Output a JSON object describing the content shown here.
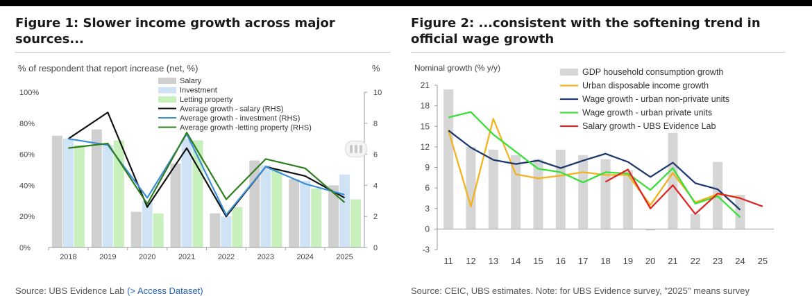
{
  "figure1": {
    "title": "Figure 1: Slower income growth across major sources...",
    "source": "Source: UBS Evidence Lab",
    "source_link": "(> Access Dataset)",
    "chart_data": {
      "type": "bar",
      "subtitle": "% of respondent that report increase (net, %)",
      "right_axis_label": "%",
      "categories": [
        "2018",
        "2019",
        "2020",
        "2021",
        "2022",
        "2023",
        "2024",
        "2025"
      ],
      "y_left": {
        "ylim": [
          0,
          100
        ],
        "ticks": [
          "0%",
          "20%",
          "40%",
          "60%",
          "80%",
          "100%"
        ],
        "tick_values": [
          0,
          20,
          40,
          60,
          80,
          100
        ]
      },
      "y_right": {
        "ylim": [
          0,
          10
        ],
        "ticks": [
          "0",
          "2",
          "4",
          "6",
          "8",
          "10"
        ],
        "tick_values": [
          0,
          2,
          4,
          6,
          8,
          10
        ]
      },
      "bar_series": [
        {
          "name": "Salary",
          "color": "#cfcfcf",
          "values": [
            72,
            76,
            23,
            54,
            22,
            56,
            44,
            40
          ]
        },
        {
          "name": "Investment",
          "color": "#cfe3f5",
          "values": [
            70,
            66,
            30,
            70,
            20,
            53,
            43,
            47
          ]
        },
        {
          "name": "Letting property",
          "color": "#c8f0bd",
          "values": [
            66,
            69,
            22,
            69,
            26,
            50,
            38,
            31
          ]
        }
      ],
      "line_series": [
        {
          "name": "Average growth - salary (RHS)",
          "color": "#111111",
          "values": [
            7.0,
            8.7,
            2.6,
            6.4,
            2.0,
            5.2,
            4.6,
            3.2
          ]
        },
        {
          "name": "Average growth - investment (RHS)",
          "color": "#3a8fd6",
          "values": [
            7.0,
            6.6,
            3.2,
            7.3,
            2.1,
            5.2,
            4.1,
            3.4
          ]
        },
        {
          "name": "Average growth -letting property (RHS)",
          "color": "#2e7d1e",
          "values": [
            6.4,
            6.7,
            2.8,
            7.4,
            3.1,
            5.7,
            5.1,
            2.9
          ]
        }
      ]
    }
  },
  "figure2": {
    "title": "Figure 2: ...consistent with the softening trend in official wage growth",
    "source": "Source: CEIC, UBS estimates. Note: for UBS Evidence survey, \"2025\" means survey",
    "chart_data": {
      "type": "bar",
      "ylabel": "Nominal growth (% y/y)",
      "categories": [
        "11",
        "12",
        "13",
        "14",
        "15",
        "16",
        "17",
        "18",
        "19",
        "20",
        "21",
        "22",
        "23",
        "24",
        "25"
      ],
      "ylim": [
        -3,
        21
      ],
      "ticks": [
        "-3",
        "0",
        "3",
        "6",
        "9",
        "12",
        "15",
        "18",
        "21"
      ],
      "tick_values": [
        -3,
        0,
        3,
        6,
        9,
        12,
        15,
        18,
        21
      ],
      "bar_series": [
        {
          "name": "GDP household consumption growth",
          "color": "#d6d6d6",
          "values": [
            20.4,
            12.0,
            11.6,
            10.8,
            10.2,
            11.6,
            10.8,
            10.2,
            8.6,
            -0.2,
            14.0,
            2.2,
            9.8,
            5.0,
            null
          ]
        }
      ],
      "line_series": [
        {
          "name": "Urban disposable income growth",
          "color": "#f2b21b",
          "values": [
            14.4,
            3.3,
            16.1,
            8.0,
            7.4,
            7.8,
            8.3,
            7.9,
            7.9,
            3.5,
            8.2,
            3.9,
            5.1,
            4.6,
            null
          ]
        },
        {
          "name": "Wage growth - urban non-private units",
          "color": "#1f3a6e",
          "values": [
            14.4,
            11.9,
            10.1,
            9.5,
            10.0,
            8.9,
            10.0,
            11.0,
            9.8,
            7.6,
            9.7,
            6.7,
            5.8,
            2.8,
            null
          ]
        },
        {
          "name": "Wage growth - urban private units",
          "color": "#38e038",
          "values": [
            16.3,
            17.1,
            13.8,
            11.3,
            8.8,
            8.3,
            6.8,
            8.3,
            8.1,
            5.7,
            8.9,
            3.7,
            4.8,
            1.7,
            null
          ]
        },
        {
          "name": "Salary growth - UBS Evidence Lab",
          "color": "#e02525",
          "values": [
            null,
            null,
            null,
            null,
            null,
            null,
            null,
            6.9,
            8.7,
            3.0,
            6.4,
            2.2,
            5.2,
            4.5,
            3.3
          ]
        }
      ]
    }
  }
}
